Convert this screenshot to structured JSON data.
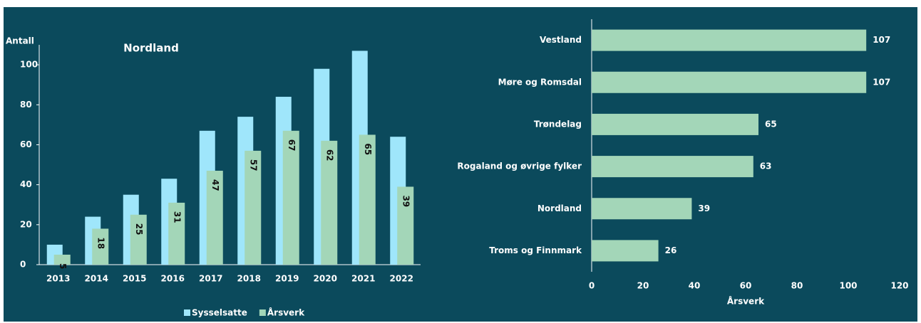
{
  "chart_data": [
    {
      "type": "bar",
      "title": "Nordland",
      "y_label": "Antall",
      "categories": [
        "2013",
        "2014",
        "2015",
        "2016",
        "2017",
        "2018",
        "2019",
        "2020",
        "2021",
        "2022"
      ],
      "series": [
        {
          "name": "Sysselsatte",
          "color": "#9fe6fb",
          "values": [
            10,
            24,
            35,
            43,
            67,
            74,
            84,
            98,
            107,
            64
          ]
        },
        {
          "name": "Årsverk",
          "color": "#a3d6b8",
          "values": [
            5,
            18,
            25,
            31,
            47,
            57,
            67,
            62,
            65,
            39
          ]
        }
      ],
      "ylim": [
        0,
        110
      ],
      "yticks": [
        0,
        20,
        40,
        60,
        80,
        100
      ]
    },
    {
      "type": "hbar",
      "x_label": "Årsverk",
      "categories": [
        "Vestland",
        "Møre og Romsdal",
        "Trøndelag",
        "Rogaland og øvrige fylker",
        "Nordland",
        "Troms og Finnmark"
      ],
      "values": [
        107,
        107,
        65,
        63,
        39,
        26
      ],
      "color": "#a3d6b8",
      "xlim": [
        0,
        120
      ],
      "xticks": [
        0,
        20,
        40,
        60,
        80,
        100,
        120
      ]
    }
  ]
}
